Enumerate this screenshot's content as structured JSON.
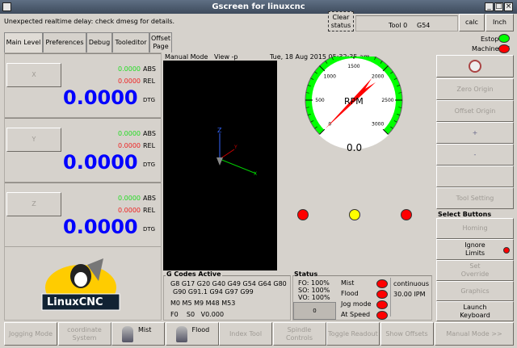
{
  "window": {
    "title": "Gscreen for linuxcnc"
  },
  "status_bar": {
    "message": "Unexpected realtime delay: check dmesg for details.",
    "clear_label": "Clear status",
    "tool": "Tool 0",
    "coord": "G54",
    "calc_label": "calc",
    "units_label": "Inch"
  },
  "tabs": [
    {
      "label": "Main Level"
    },
    {
      "label": "Preferences"
    },
    {
      "label": "Debug"
    },
    {
      "label": "Tooleditor"
    },
    {
      "label": "Offset Page"
    }
  ],
  "axes": [
    {
      "name": "X",
      "abs": "0.0000",
      "abs_label": "ABS",
      "rel": "0.0000",
      "rel_label": "REL",
      "dtg": "0.0000",
      "dtg_label": "DTG"
    },
    {
      "name": "Y",
      "abs": "0.0000",
      "abs_label": "ABS",
      "rel": "0.0000",
      "rel_label": "REL",
      "dtg": "0.0000",
      "dtg_label": "DTG"
    },
    {
      "name": "Z",
      "abs": "0.0000",
      "abs_label": "ABS",
      "rel": "0.0000",
      "rel_label": "REL",
      "dtg": "0.0000",
      "dtg_label": "DTG"
    }
  ],
  "logo": {
    "text": "LinuxCNC"
  },
  "graphics": {
    "mode": "Manual Mode",
    "view": "View -p",
    "datetime": "Tue, 18 Aug 2015   05:32:35 am"
  },
  "gauge": {
    "label": "RPM",
    "value": "0.0",
    "ticks": [
      "0",
      "500",
      "1000",
      "1500",
      "2000",
      "2500",
      "3000"
    ],
    "min": 0,
    "max": 3000
  },
  "indicators": [
    {
      "color": "#ff0000"
    },
    {
      "color": "#ffff00"
    },
    {
      "color": "#ff0000"
    }
  ],
  "gcodes": {
    "title": "G Codes Active",
    "line1": "G8 G17 G20 G40 G49 G54 G64 G80",
    "line2": "G90 G91.1 G94 G97 G99",
    "mcodes": "M0 M5 M9 M48 M53",
    "feed": "F0    S0   V0.000"
  },
  "status": {
    "title": "Status",
    "fo": "FO: 100%",
    "so": "SO: 100%",
    "vo": "VO: 100%",
    "box_value": "0",
    "leds": [
      {
        "label": "Mist"
      },
      {
        "label": "Flood"
      },
      {
        "label": "Jog mode"
      },
      {
        "label": "At Speed"
      }
    ],
    "jog_mode": "continuous",
    "jog_rate": "30.00 IPM"
  },
  "right": {
    "estop": "Estop",
    "machine": "Machine off",
    "zero_origin": "Zero Origin",
    "offset_origin": "Offset Origin",
    "plus": "+",
    "minus": "-",
    "tool_setting": "Tool Setting",
    "select_title": "Select Buttons",
    "homing": "Homing",
    "ignore_limits": "Ignore Limits",
    "set_override": "Set Override",
    "graphics": "Graphics",
    "launch_keyboard": "Launch Keyboard",
    "manual_mode": "Manual Mode >>"
  },
  "bottom": [
    {
      "label": "Jogging Mode"
    },
    {
      "label": "coordinate System"
    },
    {
      "label": "Mist"
    },
    {
      "label": "Flood"
    },
    {
      "label": "Index Tool"
    },
    {
      "label": "Spindle Controls"
    },
    {
      "label": "Toggle Readout"
    },
    {
      "label": "Show Offsets"
    }
  ]
}
